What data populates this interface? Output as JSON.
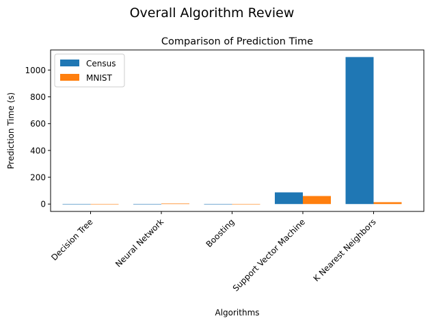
{
  "chart_data": {
    "type": "bar",
    "suptitle": "Overall Algorithm Review",
    "title": "Comparison of Prediction Time",
    "xlabel": "Algorithms",
    "ylabel": "Prediction Time (s)",
    "categories": [
      "Decision Tree",
      "Neural Network",
      "Boosting",
      "Support Vector Machine",
      "K Nearest Neighbors"
    ],
    "series": [
      {
        "name": "Census",
        "color": "#1f77b4",
        "values": [
          0.5,
          0.8,
          0.6,
          87,
          1097
        ]
      },
      {
        "name": "MNIST",
        "color": "#ff7f0e",
        "values": [
          0.4,
          4,
          0.6,
          60,
          14
        ]
      }
    ],
    "ylim": [
      -55,
      1150
    ],
    "yticks": [
      0,
      200,
      400,
      600,
      800,
      1000
    ],
    "legend_position": "upper-left",
    "grid": false
  }
}
